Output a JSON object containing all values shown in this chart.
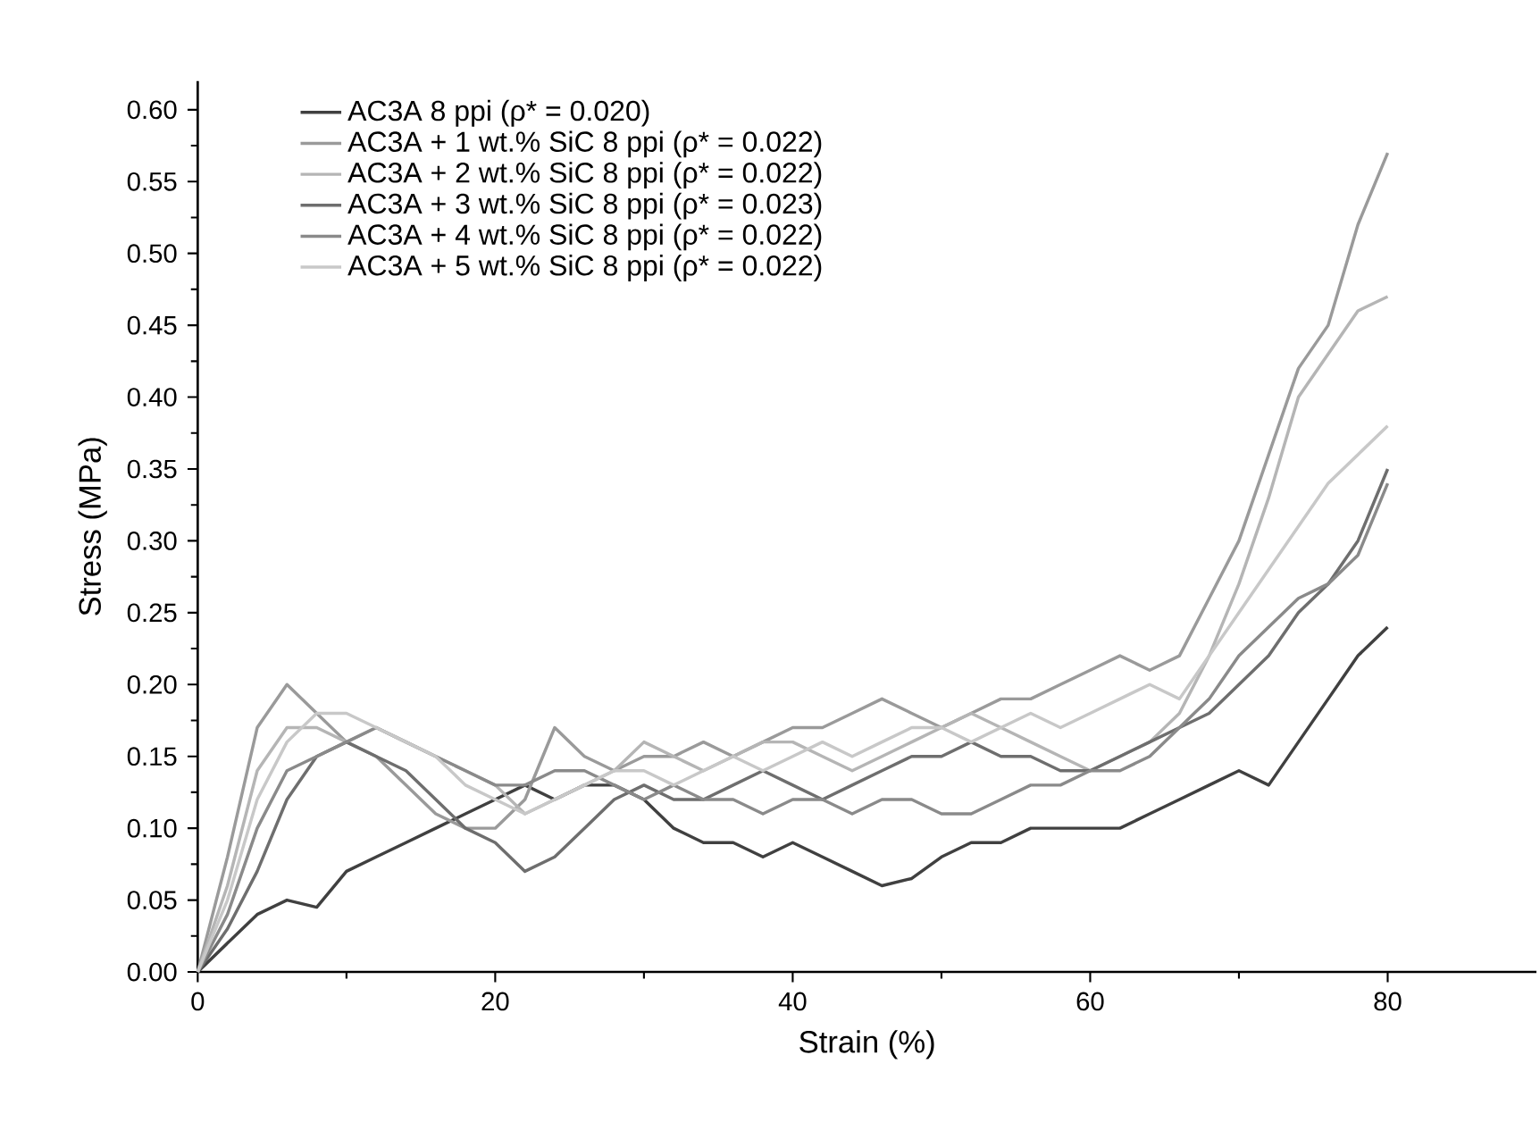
{
  "chart_data": {
    "type": "line",
    "xlabel": "Strain (%)",
    "ylabel": "Stress (MPa)",
    "xlim": [
      0,
      90
    ],
    "ylim": [
      0,
      0.62
    ],
    "xticks": [
      0,
      20,
      40,
      60,
      80
    ],
    "yticks": [
      {
        "value": 0,
        "label": "0.00"
      },
      {
        "value": 0.05,
        "label": "0.05"
      },
      {
        "value": 0.1,
        "label": "0.10"
      },
      {
        "value": 0.15,
        "label": "0.15"
      },
      {
        "value": 0.2,
        "label": "0.20"
      },
      {
        "value": 0.25,
        "label": "0.25"
      },
      {
        "value": 0.3,
        "label": "0.30"
      },
      {
        "value": 0.35,
        "label": "0.35"
      },
      {
        "value": 0.4,
        "label": "0.40"
      },
      {
        "value": 0.45,
        "label": "0.45"
      },
      {
        "value": 0.5,
        "label": "0.50"
      },
      {
        "value": 0.55,
        "label": "0.55"
      },
      {
        "value": 0.6,
        "label": "0.60"
      }
    ],
    "grid": false,
    "legend": "top left",
    "marker": "none",
    "line_style": "solid",
    "x": [
      0,
      2,
      4,
      6,
      8,
      10,
      12,
      14,
      16,
      18,
      20,
      22,
      24,
      26,
      28,
      30,
      32,
      34,
      36,
      38,
      40,
      42,
      44,
      46,
      48,
      50,
      52,
      54,
      56,
      58,
      60,
      62,
      64,
      66,
      68,
      70,
      72,
      74,
      76,
      78,
      80
    ],
    "series": [
      {
        "name": "AC3A 8 ppi (ρ* =  0.020)",
        "color": "#404040",
        "values": [
          0,
          0.02,
          0.04,
          0.05,
          0.045,
          0.07,
          0.08,
          0.09,
          0.1,
          0.11,
          0.12,
          0.13,
          0.12,
          0.13,
          0.13,
          0.12,
          0.1,
          0.09,
          0.09,
          0.08,
          0.09,
          0.08,
          0.07,
          0.06,
          0.065,
          0.08,
          0.09,
          0.09,
          0.1,
          0.1,
          0.1,
          0.1,
          0.11,
          0.12,
          0.13,
          0.14,
          0.13,
          0.16,
          0.19,
          0.22,
          0.24
        ]
      },
      {
        "name": "AC3A + 1 wt.% SiC 8 ppi (ρ* =  0.022)",
        "color": "#9a9a9a",
        "values": [
          0,
          0.08,
          0.17,
          0.2,
          0.18,
          0.16,
          0.15,
          0.13,
          0.11,
          0.1,
          0.1,
          0.12,
          0.17,
          0.15,
          0.14,
          0.15,
          0.15,
          0.16,
          0.15,
          0.16,
          0.17,
          0.17,
          0.18,
          0.19,
          0.18,
          0.17,
          0.18,
          0.19,
          0.19,
          0.2,
          0.21,
          0.22,
          0.21,
          0.22,
          0.26,
          0.3,
          0.36,
          0.42,
          0.45,
          0.52,
          0.57
        ]
      },
      {
        "name": "AC3A + 2 wt.% SiC 8 ppi (ρ* =  0.022)",
        "color": "#b5b5b5",
        "values": [
          0,
          0.06,
          0.14,
          0.17,
          0.17,
          0.16,
          0.17,
          0.16,
          0.15,
          0.14,
          0.13,
          0.11,
          0.12,
          0.13,
          0.14,
          0.16,
          0.15,
          0.14,
          0.15,
          0.16,
          0.16,
          0.15,
          0.14,
          0.15,
          0.16,
          0.17,
          0.18,
          0.17,
          0.16,
          0.15,
          0.14,
          0.15,
          0.16,
          0.18,
          0.22,
          0.27,
          0.33,
          0.4,
          0.43,
          0.46,
          0.47
        ]
      },
      {
        "name": "AC3A + 3 wt.% SiC 8 ppi (ρ* =  0.023)",
        "color": "#6e6e6e",
        "values": [
          0,
          0.03,
          0.07,
          0.12,
          0.15,
          0.16,
          0.15,
          0.14,
          0.12,
          0.1,
          0.09,
          0.07,
          0.08,
          0.1,
          0.12,
          0.13,
          0.12,
          0.12,
          0.13,
          0.14,
          0.13,
          0.12,
          0.13,
          0.14,
          0.15,
          0.15,
          0.16,
          0.15,
          0.15,
          0.14,
          0.14,
          0.15,
          0.16,
          0.17,
          0.18,
          0.2,
          0.22,
          0.25,
          0.27,
          0.3,
          0.35
        ]
      },
      {
        "name": "AC3A + 4 wt.% SiC 8 ppi (ρ* =  0.022)",
        "color": "#8a8a8a",
        "values": [
          0,
          0.04,
          0.1,
          0.14,
          0.15,
          0.16,
          0.17,
          0.16,
          0.15,
          0.14,
          0.13,
          0.13,
          0.14,
          0.14,
          0.13,
          0.12,
          0.13,
          0.12,
          0.12,
          0.11,
          0.12,
          0.12,
          0.11,
          0.12,
          0.12,
          0.11,
          0.11,
          0.12,
          0.13,
          0.13,
          0.14,
          0.14,
          0.15,
          0.17,
          0.19,
          0.22,
          0.24,
          0.26,
          0.27,
          0.29,
          0.34
        ]
      },
      {
        "name": "AC3A + 5 wt.% SiC 8 ppi (ρ* =  0.022)",
        "color": "#c8c8c8",
        "values": [
          0,
          0.05,
          0.12,
          0.16,
          0.18,
          0.18,
          0.17,
          0.16,
          0.15,
          0.13,
          0.12,
          0.11,
          0.12,
          0.13,
          0.14,
          0.14,
          0.13,
          0.14,
          0.15,
          0.14,
          0.15,
          0.16,
          0.15,
          0.16,
          0.17,
          0.17,
          0.16,
          0.17,
          0.18,
          0.17,
          0.18,
          0.19,
          0.2,
          0.19,
          0.22,
          0.25,
          0.28,
          0.31,
          0.34,
          0.36,
          0.38
        ]
      }
    ]
  }
}
